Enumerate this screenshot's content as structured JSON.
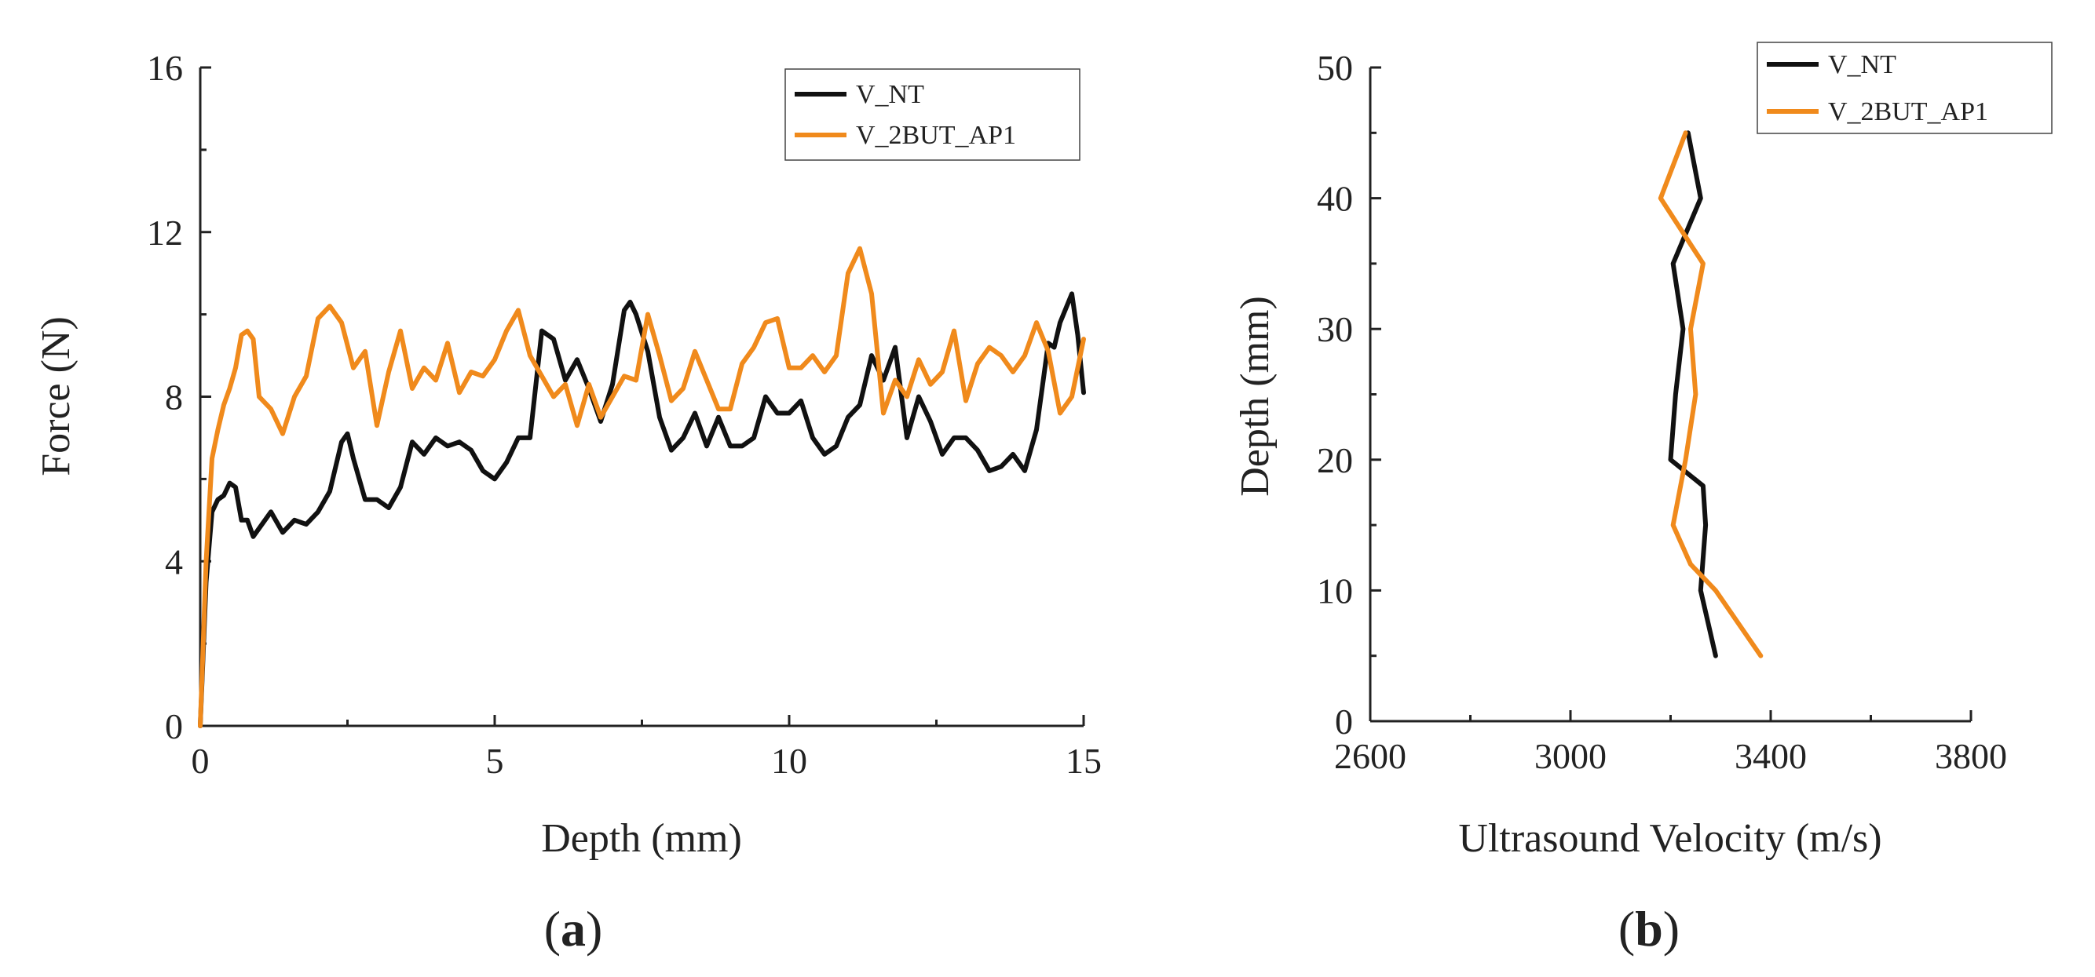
{
  "chart_data": [
    {
      "type": "line",
      "panel_label_prefix": "(",
      "panel_label_letter": "a",
      "panel_label_suffix": ")",
      "xlabel": "Depth (mm)",
      "ylabel": "Force (N)",
      "xlim": [
        0,
        15
      ],
      "ylim": [
        0,
        16
      ],
      "xticks": [
        0,
        5,
        10,
        15
      ],
      "yticks": [
        0,
        4,
        8,
        12,
        16
      ],
      "legend_position": "top-right",
      "series": [
        {
          "name": "V_NT",
          "color": "#111111",
          "x": [
            0,
            0.1,
            0.2,
            0.3,
            0.4,
            0.5,
            0.6,
            0.7,
            0.8,
            0.9,
            1.0,
            1.2,
            1.4,
            1.6,
            1.8,
            2.0,
            2.2,
            2.4,
            2.5,
            2.6,
            2.8,
            3.0,
            3.2,
            3.4,
            3.6,
            3.8,
            4.0,
            4.2,
            4.4,
            4.6,
            4.8,
            5.0,
            5.2,
            5.4,
            5.6,
            5.8,
            6.0,
            6.2,
            6.4,
            6.6,
            6.8,
            7.0,
            7.2,
            7.3,
            7.4,
            7.6,
            7.8,
            8.0,
            8.2,
            8.4,
            8.6,
            8.8,
            9.0,
            9.2,
            9.4,
            9.6,
            9.8,
            10.0,
            10.2,
            10.4,
            10.6,
            10.8,
            11.0,
            11.2,
            11.4,
            11.6,
            11.8,
            12.0,
            12.2,
            12.4,
            12.6,
            12.8,
            13.0,
            13.2,
            13.4,
            13.6,
            13.8,
            14.0,
            14.2,
            14.4,
            14.5,
            14.6,
            14.8,
            14.9,
            15.0
          ],
          "y": [
            0,
            3.5,
            5.2,
            5.5,
            5.6,
            5.9,
            5.8,
            5.0,
            5.0,
            4.6,
            4.8,
            5.2,
            4.7,
            5.0,
            4.9,
            5.2,
            5.7,
            6.9,
            7.1,
            6.5,
            5.5,
            5.5,
            5.3,
            5.8,
            6.9,
            6.6,
            7.0,
            6.8,
            6.9,
            6.7,
            6.2,
            6.0,
            6.4,
            7.0,
            7.0,
            9.6,
            9.4,
            8.4,
            8.9,
            8.2,
            7.4,
            8.3,
            10.1,
            10.3,
            10.0,
            9.1,
            7.5,
            6.7,
            7.0,
            7.6,
            6.8,
            7.5,
            6.8,
            6.8,
            7.0,
            8.0,
            7.6,
            7.6,
            7.9,
            7.0,
            6.6,
            6.8,
            7.5,
            7.8,
            9.0,
            8.4,
            9.2,
            7.0,
            8.0,
            7.4,
            6.6,
            7.0,
            7.0,
            6.7,
            6.2,
            6.3,
            6.6,
            6.2,
            7.2,
            9.3,
            9.2,
            9.8,
            10.5,
            9.5,
            8.1
          ]
        },
        {
          "name": "V_2BUT_AP1",
          "color": "#F08A1C",
          "x": [
            0,
            0.1,
            0.2,
            0.3,
            0.4,
            0.5,
            0.6,
            0.7,
            0.8,
            0.9,
            1.0,
            1.2,
            1.4,
            1.6,
            1.8,
            2.0,
            2.2,
            2.4,
            2.6,
            2.8,
            3.0,
            3.2,
            3.4,
            3.6,
            3.8,
            4.0,
            4.2,
            4.4,
            4.6,
            4.8,
            5.0,
            5.2,
            5.4,
            5.6,
            5.8,
            6.0,
            6.2,
            6.4,
            6.6,
            6.8,
            7.0,
            7.2,
            7.4,
            7.6,
            7.8,
            8.0,
            8.2,
            8.4,
            8.6,
            8.8,
            9.0,
            9.2,
            9.4,
            9.6,
            9.8,
            10.0,
            10.2,
            10.4,
            10.6,
            10.8,
            11.0,
            11.2,
            11.4,
            11.6,
            11.8,
            12.0,
            12.2,
            12.4,
            12.6,
            12.8,
            13.0,
            13.2,
            13.4,
            13.6,
            13.8,
            14.0,
            14.2,
            14.4,
            14.6,
            14.8,
            15.0
          ],
          "y": [
            0,
            4.0,
            6.5,
            7.2,
            7.8,
            8.2,
            8.7,
            9.5,
            9.6,
            9.4,
            8.0,
            7.7,
            7.1,
            8.0,
            8.5,
            9.9,
            10.2,
            9.8,
            8.7,
            9.1,
            7.3,
            8.6,
            9.6,
            8.2,
            8.7,
            8.4,
            9.3,
            8.1,
            8.6,
            8.5,
            8.9,
            9.6,
            10.1,
            9.0,
            8.5,
            8.0,
            8.3,
            7.3,
            8.3,
            7.5,
            8.0,
            8.5,
            8.4,
            10.0,
            9.0,
            7.9,
            8.2,
            9.1,
            8.4,
            7.7,
            7.7,
            8.8,
            9.2,
            9.8,
            9.9,
            8.7,
            8.7,
            9.0,
            8.6,
            9.0,
            11.0,
            11.6,
            10.5,
            7.6,
            8.4,
            8.0,
            8.9,
            8.3,
            8.6,
            9.6,
            7.9,
            8.8,
            9.2,
            9.0,
            8.6,
            9.0,
            9.8,
            9.1,
            7.6,
            8.0,
            9.4
          ]
        }
      ]
    },
    {
      "type": "line",
      "panel_label_prefix": "(",
      "panel_label_letter": "b",
      "panel_label_suffix": ")",
      "xlabel": "Ultrasound Velocity (m/s)",
      "ylabel": "Depth (mm)",
      "xlim": [
        2600,
        3800
      ],
      "ylim": [
        0,
        50
      ],
      "xticks": [
        2600,
        3000,
        3400,
        3800
      ],
      "yticks": [
        0,
        10,
        20,
        30,
        40,
        50
      ],
      "legend_position": "top-right",
      "series": [
        {
          "name": "V_NT",
          "color": "#111111",
          "x": [
            3290,
            3260,
            3270,
            3265,
            3200,
            3210,
            3225,
            3205,
            3260,
            3235
          ],
          "y": [
            5,
            10,
            15,
            18,
            20,
            25,
            30,
            35,
            40,
            45
          ]
        },
        {
          "name": "V_2BUT_AP1",
          "color": "#F08A1C",
          "x": [
            3380,
            3290,
            3240,
            3205,
            3230,
            3250,
            3240,
            3265,
            3180,
            3230
          ],
          "y": [
            5,
            10,
            12,
            15,
            20,
            25,
            30,
            35,
            40,
            45
          ]
        }
      ]
    }
  ]
}
